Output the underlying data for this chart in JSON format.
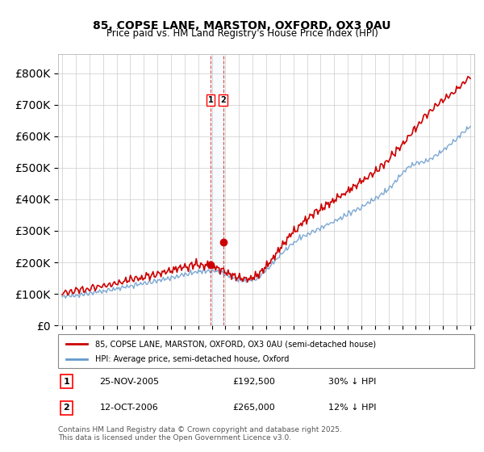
{
  "title": "85, COPSE LANE, MARSTON, OXFORD, OX3 0AU",
  "subtitle": "Price paid vs. HM Land Registry's House Price Index (HPI)",
  "legend_line1": "85, COPSE LANE, MARSTON, OXFORD, OX3 0AU (semi-detached house)",
  "legend_line2": "HPI: Average price, semi-detached house, Oxford",
  "purchase1_date": "25-NOV-2005",
  "purchase1_price": 192500,
  "purchase1_label": "30% ↓ HPI",
  "purchase2_date": "12-OCT-2006",
  "purchase2_price": 265000,
  "purchase2_label": "12% ↓ HPI",
  "footer": "Contains HM Land Registry data © Crown copyright and database right 2025.\nThis data is licensed under the Open Government Licence v3.0.",
  "red_color": "#cc0000",
  "blue_color": "#6699cc",
  "background_color": "#ffffff",
  "grid_color": "#cccccc",
  "x_start_year": 1995,
  "x_end_year": 2025,
  "ylim_min": 0,
  "ylim_max": 860000
}
